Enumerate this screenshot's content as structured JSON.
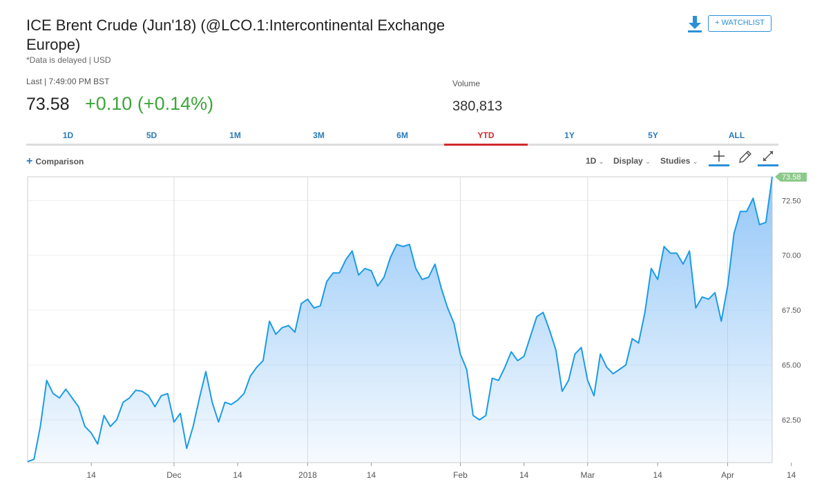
{
  "header": {
    "title": "ICE Brent Crude (Jun'18) (@LCO.1:Intercontinental Exchange Europe)",
    "subtitle": "*Data is delayed | USD",
    "watchlist_label": "+ WATCHLIST",
    "download_icon": "download-icon"
  },
  "quote": {
    "last_label": "Last | 7:49:00 PM BST",
    "price": "73.58",
    "change": "+0.10 (+0.14%)",
    "volume_label": "Volume",
    "volume_value": "380,813",
    "change_color": "#3ea53a"
  },
  "tabs": [
    {
      "label": "1D"
    },
    {
      "label": "5D"
    },
    {
      "label": "1M"
    },
    {
      "label": "3M"
    },
    {
      "label": "6M"
    },
    {
      "label": "YTD",
      "active": true
    },
    {
      "label": "1Y"
    },
    {
      "label": "5Y"
    },
    {
      "label": "ALL"
    }
  ],
  "toolbar": {
    "comparison_label": "Comparison",
    "interval_label": "1D",
    "display_label": "Display",
    "studies_label": "Studies",
    "icons": [
      "crosshair-icon",
      "pencil-icon",
      "expand-icon"
    ]
  },
  "chart_data": {
    "type": "area",
    "line_color": "#1a9be6",
    "fill_color": "#8ec4f7",
    "last_price_label": "73.58",
    "ylim": [
      60.55,
      73.58
    ],
    "yticks": [
      62.5,
      65.0,
      67.5,
      70.0,
      72.5
    ],
    "ytick_labels": [
      "62.50",
      "65.00",
      "67.50",
      "70.00",
      "72.50"
    ],
    "x_labels": [
      {
        "label": "14",
        "index": 10
      },
      {
        "label": "Dec",
        "index": 23
      },
      {
        "label": "14",
        "index": 33
      },
      {
        "label": "2018",
        "index": 44
      },
      {
        "label": "14",
        "index": 54
      },
      {
        "label": "Feb",
        "index": 68
      },
      {
        "label": "14",
        "index": 78
      },
      {
        "label": "Mar",
        "index": 88
      },
      {
        "label": "14",
        "index": 99
      },
      {
        "label": "Apr",
        "index": 110
      },
      {
        "label": "14",
        "index": 120
      }
    ],
    "values": [
      60.6,
      60.7,
      62.2,
      64.3,
      63.7,
      63.5,
      63.9,
      63.5,
      63.1,
      62.2,
      61.9,
      61.4,
      62.7,
      62.2,
      62.5,
      63.3,
      63.5,
      63.85,
      63.8,
      63.6,
      63.1,
      63.6,
      63.7,
      62.4,
      62.8,
      61.2,
      62.2,
      63.5,
      64.7,
      63.3,
      62.4,
      63.3,
      63.2,
      63.4,
      63.7,
      64.5,
      64.9,
      65.2,
      67.0,
      66.4,
      66.7,
      66.8,
      66.5,
      67.8,
      68.0,
      67.6,
      67.7,
      68.8,
      69.2,
      69.2,
      69.8,
      70.2,
      69.1,
      69.4,
      69.3,
      68.6,
      69.0,
      69.9,
      70.5,
      70.4,
      70.5,
      69.4,
      68.9,
      69.0,
      69.6,
      68.5,
      67.6,
      66.9,
      65.5,
      64.8,
      62.7,
      62.5,
      62.7,
      64.4,
      64.3,
      64.9,
      65.6,
      65.2,
      65.4,
      66.3,
      67.2,
      67.4,
      66.6,
      65.7,
      63.8,
      64.3,
      65.5,
      65.8,
      64.3,
      63.6,
      65.5,
      64.9,
      64.6,
      64.8,
      65.0,
      66.2,
      66.0,
      67.4,
      69.4,
      68.9,
      70.4,
      70.1,
      70.1,
      69.6,
      70.2,
      67.6,
      68.1,
      68.0,
      68.3,
      67.0,
      68.6,
      71.0,
      72.0,
      72.0,
      72.6,
      71.4,
      71.5,
      73.58
    ]
  }
}
